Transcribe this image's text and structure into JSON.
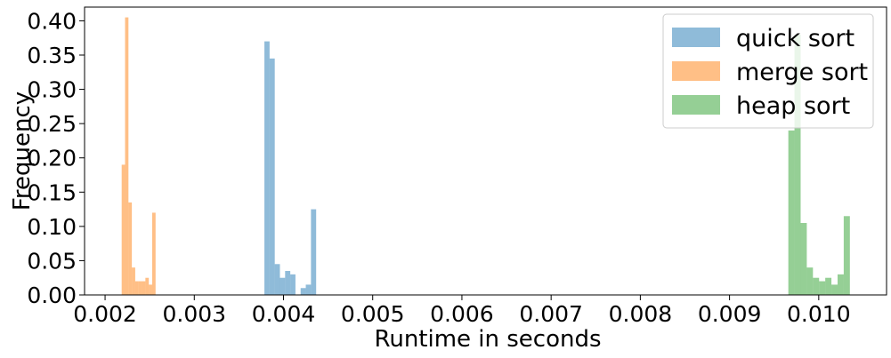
{
  "chart_data": {
    "type": "bar",
    "title": "",
    "xlabel": "Runtime in seconds",
    "ylabel": "Frequency",
    "xlim": [
      0.00177,
      0.01076
    ],
    "ylim": [
      0,
      0.42
    ],
    "grid": false,
    "legend_position": "top-right",
    "xticks": [
      "0.002",
      "0.003",
      "0.004",
      "0.005",
      "0.006",
      "0.007",
      "0.008",
      "0.009",
      "0.010"
    ],
    "xtick_values": [
      0.002,
      0.003,
      0.004,
      0.005,
      0.006,
      0.007,
      0.008,
      0.009,
      0.01
    ],
    "yticks": [
      "0.00",
      "0.05",
      "0.10",
      "0.15",
      "0.20",
      "0.25",
      "0.30",
      "0.35",
      "0.40"
    ],
    "ytick_values": [
      0.0,
      0.05,
      0.1,
      0.15,
      0.2,
      0.25,
      0.3,
      0.35,
      0.4
    ],
    "series": [
      {
        "name": "quick sort",
        "color": "#1f77b4",
        "bin_edges": [
          0.003786,
          0.003844,
          0.003902,
          0.00396,
          0.004018,
          0.004076,
          0.004134,
          0.004192,
          0.00425,
          0.004308,
          0.004366
        ],
        "values": [
          0.37,
          0.345,
          0.045,
          0.025,
          0.035,
          0.03,
          0.0,
          0.01,
          0.015,
          0.125
        ]
      },
      {
        "name": "merge sort",
        "color": "#ff7f0e",
        "bin_edges": [
          0.002186,
          0.002224,
          0.002262,
          0.0023,
          0.002338,
          0.002376,
          0.002414,
          0.002452,
          0.00249,
          0.002528,
          0.002566
        ],
        "values": [
          0.19,
          0.405,
          0.135,
          0.04,
          0.02,
          0.02,
          0.02,
          0.025,
          0.015,
          0.12
        ]
      },
      {
        "name": "heap sort",
        "color": "#2ca02c",
        "bin_edges": [
          0.009659,
          0.009728,
          0.009797,
          0.009866,
          0.009935,
          0.010004,
          0.010073,
          0.010142,
          0.010211,
          0.01028,
          0.010349
        ],
        "values": [
          0.24,
          0.38,
          0.105,
          0.04,
          0.025,
          0.02,
          0.025,
          0.015,
          0.03,
          0.115
        ]
      }
    ]
  }
}
